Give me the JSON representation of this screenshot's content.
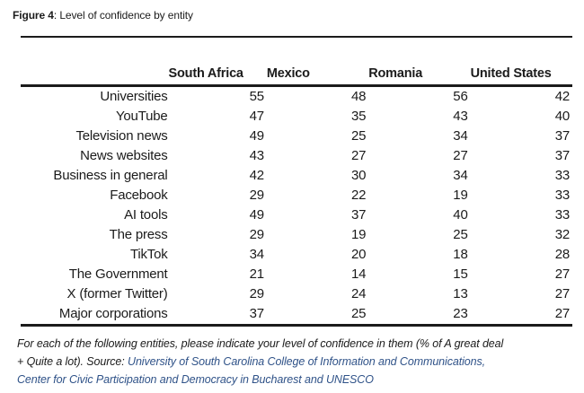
{
  "figure": {
    "label_bold": "Figure 4",
    "title_rest": ": Level of confidence by entity"
  },
  "table": {
    "columns": [
      "South Africa",
      "Mexico",
      "Romania",
      "United States"
    ],
    "rows": [
      {
        "entity": "Universities",
        "values": [
          55,
          48,
          56,
          42
        ]
      },
      {
        "entity": "YouTube",
        "values": [
          47,
          35,
          43,
          40
        ]
      },
      {
        "entity": "Television news",
        "values": [
          49,
          25,
          34,
          37
        ]
      },
      {
        "entity": "News websites",
        "values": [
          43,
          27,
          27,
          37
        ]
      },
      {
        "entity": "Business in general",
        "values": [
          42,
          30,
          34,
          33
        ]
      },
      {
        "entity": "Facebook",
        "values": [
          29,
          22,
          19,
          33
        ]
      },
      {
        "entity": "AI tools",
        "values": [
          49,
          37,
          40,
          33
        ]
      },
      {
        "entity": "The press",
        "values": [
          29,
          19,
          25,
          32
        ]
      },
      {
        "entity": "TikTok",
        "values": [
          34,
          20,
          18,
          28
        ]
      },
      {
        "entity": "The Government",
        "values": [
          21,
          14,
          15,
          27
        ]
      },
      {
        "entity": "X (former Twitter)",
        "values": [
          29,
          24,
          13,
          27
        ]
      },
      {
        "entity": "Major corporations",
        "values": [
          37,
          25,
          23,
          27
        ]
      }
    ]
  },
  "footnote": {
    "lines": [
      [
        {
          "text": "For each of the following entities, please indicate your level of confidence in them (% of A great deal",
          "style": "normal"
        }
      ],
      [
        {
          "text": "+ Quite a lot). Source: ",
          "style": "normal"
        },
        {
          "text": "University of South Carolina College of Information and Communications,",
          "style": "link"
        }
      ],
      [
        {
          "text": "Center for Civic Participation and Democracy in Bucharest and UNESCO",
          "style": "link"
        }
      ]
    ]
  },
  "colors": {
    "text": "#1b1b1b",
    "rule": "#1b1b1b",
    "link": "#2f5288",
    "background": "#ffffff"
  }
}
